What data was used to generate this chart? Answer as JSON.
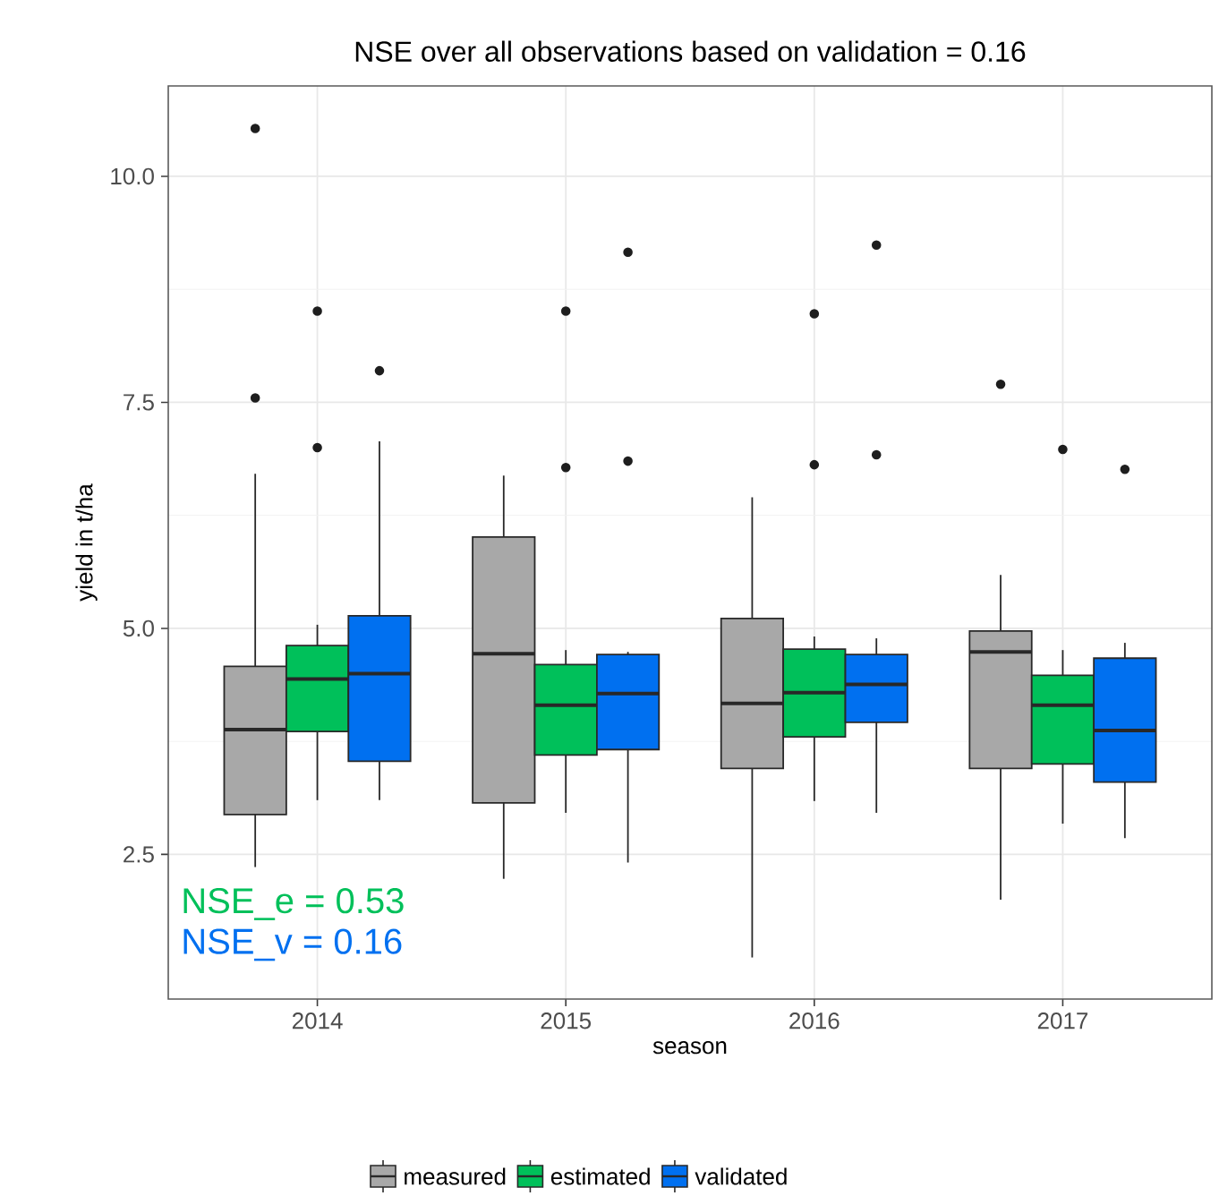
{
  "chart_data": {
    "type": "box",
    "title": "NSE over all observations based on validation =  0.16",
    "xlabel": "season",
    "ylabel": "yield in t/ha",
    "categories": [
      "2014",
      "2015",
      "2016",
      "2017"
    ],
    "ylim": [
      0.9,
      11.0
    ],
    "yticks": [
      2.5,
      {
        "value": 5,
        "label": "5.0"
      },
      7.5,
      {
        "value": 10,
        "label": "10.0"
      }
    ],
    "grid": true,
    "legend": "bottom",
    "annotations": [
      "NSE_e =  0.53",
      "NSE_v =  0.16"
    ],
    "series": [
      {
        "name": "measured",
        "color": "#a8a8a8",
        "boxes": [
          {
            "low": 2.36,
            "q1": 2.94,
            "median": 3.88,
            "q3": 4.58,
            "high": 6.71,
            "outliers": [
              10.53,
              7.55
            ]
          },
          {
            "low": 2.23,
            "q1": 3.07,
            "median": 4.72,
            "q3": 6.01,
            "high": 6.69
          },
          {
            "low": 1.36,
            "q1": 3.45,
            "median": 4.17,
            "q3": 5.11,
            "high": 6.45
          },
          {
            "low": 2.0,
            "q1": 3.45,
            "median": 4.74,
            "q3": 4.97,
            "high": 5.59,
            "outliers": [
              7.7
            ]
          }
        ]
      },
      {
        "name": "estimated",
        "color": "#00c05a",
        "boxes": [
          {
            "low": 3.1,
            "q1": 3.86,
            "median": 4.44,
            "q3": 4.81,
            "high": 5.04,
            "outliers": [
              8.51,
              7.0
            ]
          },
          {
            "low": 2.96,
            "q1": 3.6,
            "median": 4.15,
            "q3": 4.6,
            "high": 4.76,
            "outliers": [
              8.51,
              6.78
            ]
          },
          {
            "low": 3.09,
            "q1": 3.8,
            "median": 4.29,
            "q3": 4.77,
            "high": 4.91,
            "outliers": [
              8.48,
              6.81
            ]
          },
          {
            "low": 2.84,
            "q1": 3.5,
            "median": 4.15,
            "q3": 4.48,
            "high": 4.76,
            "outliers": [
              6.98
            ]
          }
        ]
      },
      {
        "name": "validated",
        "color": "#0070f0",
        "boxes": [
          {
            "low": 3.1,
            "q1": 3.53,
            "median": 4.5,
            "q3": 5.14,
            "high": 7.07,
            "outliers": [
              7.85
            ]
          },
          {
            "low": 2.41,
            "q1": 3.66,
            "median": 4.28,
            "q3": 4.71,
            "high": 4.74,
            "outliers": [
              9.16,
              6.85
            ]
          },
          {
            "low": 2.96,
            "q1": 3.96,
            "median": 4.38,
            "q3": 4.71,
            "high": 4.89,
            "outliers": [
              9.24,
              6.92
            ]
          },
          {
            "low": 2.68,
            "q1": 3.3,
            "median": 3.87,
            "q3": 4.67,
            "high": 4.84,
            "outliers": [
              6.76
            ]
          }
        ]
      }
    ]
  }
}
